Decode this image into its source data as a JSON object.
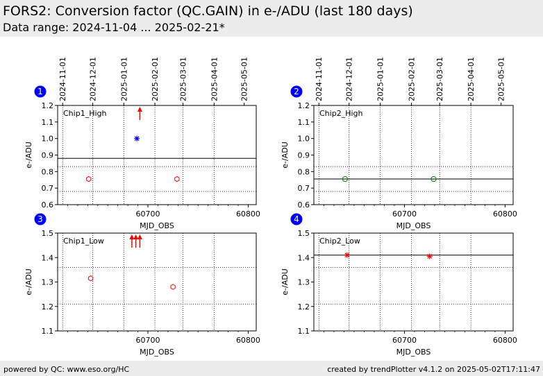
{
  "header": {
    "title": "FORS2: Conversion factor (QC.GAIN) in e-/ADU (last 180 days)",
    "subtitle": "Data range: 2024-11-04 ... 2025-02-21*"
  },
  "footer": {
    "left": "powered by QC: www.eso.org/HC",
    "right": "created by trendPlotter v4.1.2 on 2025-05-02T17:11:47"
  },
  "colors": {
    "header_bg": "#ececec",
    "red": "#ff0000",
    "blue": "#0000ff",
    "green": "#008000",
    "badge": "#0000ff"
  },
  "date_ticks": [
    "2024-11-01",
    "2024-12-01",
    "2025-01-01",
    "2025-02-01",
    "2025-03-01",
    "2025-04-01",
    "2025-05-01"
  ],
  "chart_data": [
    {
      "type": "scatter",
      "badge": "1",
      "label": "Chip1_High",
      "xlabel": "MJD_OBS",
      "ylabel": "e-/ADU",
      "xlim": [
        60610,
        60808
      ],
      "ylim": [
        0.6,
        1.2
      ],
      "xticks": [
        60700,
        60800
      ],
      "yticks": [
        0.6,
        0.7,
        0.8,
        0.9,
        1.0,
        1.1,
        1.2
      ],
      "reference_line": 0.88,
      "limit_lines": [
        0.83,
        0.68
      ],
      "points": [
        {
          "x": 60641,
          "y": 0.755,
          "marker": "hexagon",
          "color": "#ff0000"
        },
        {
          "x": 60729,
          "y": 0.755,
          "marker": "hexagon",
          "color": "#ff0000"
        },
        {
          "x": 60689,
          "y": 1.0,
          "marker": "star",
          "color": "#0000ff"
        }
      ],
      "outliers_above": [
        60692
      ]
    },
    {
      "type": "scatter",
      "badge": "2",
      "label": "Chip2_High",
      "xlabel": "MJD_OBS",
      "ylabel": "e-/ADU",
      "xlim": [
        60610,
        60808
      ],
      "ylim": [
        0.6,
        1.2
      ],
      "xticks": [
        60700,
        60800
      ],
      "yticks": [
        0.6,
        0.7,
        0.8,
        0.9,
        1.0,
        1.1,
        1.2
      ],
      "reference_line": 0.755,
      "limit_lines": [
        0.83,
        0.68
      ],
      "points": [
        {
          "x": 60641,
          "y": 0.755,
          "marker": "circle",
          "color": "#008000"
        },
        {
          "x": 60729,
          "y": 0.755,
          "marker": "circle",
          "color": "#008000"
        }
      ],
      "outliers_above": []
    },
    {
      "type": "scatter",
      "badge": "3",
      "label": "Chip1_Low",
      "xlabel": "MJD_OBS",
      "ylabel": "e-/ADU",
      "xlim": [
        60610,
        60808
      ],
      "ylim": [
        1.1,
        1.5
      ],
      "xticks": [
        60700,
        60800
      ],
      "yticks": [
        1.1,
        1.2,
        1.3,
        1.4,
        1.5
      ],
      "reference_line": 1.5,
      "limit_lines": [
        1.36,
        1.21
      ],
      "points": [
        {
          "x": 60643,
          "y": 1.315,
          "marker": "hexagon",
          "color": "#ff0000"
        },
        {
          "x": 60725,
          "y": 1.28,
          "marker": "hexagon",
          "color": "#ff0000"
        }
      ],
      "outliers_above": [
        60684,
        60688,
        60692
      ]
    },
    {
      "type": "scatter",
      "badge": "4",
      "label": "Chip2_Low",
      "xlabel": "MJD_OBS",
      "ylabel": "e-/ADU",
      "xlim": [
        60610,
        60808
      ],
      "ylim": [
        1.1,
        1.5
      ],
      "xticks": [
        60700,
        60800
      ],
      "yticks": [
        1.1,
        1.2,
        1.3,
        1.4,
        1.5
      ],
      "reference_line": 1.41,
      "limit_lines": [
        1.36,
        1.21
      ],
      "points": [
        {
          "x": 60643,
          "y": 1.41,
          "marker": "star",
          "color": "#ff0000"
        },
        {
          "x": 60725,
          "y": 1.405,
          "marker": "star",
          "color": "#ff0000"
        }
      ],
      "outliers_above": []
    }
  ]
}
